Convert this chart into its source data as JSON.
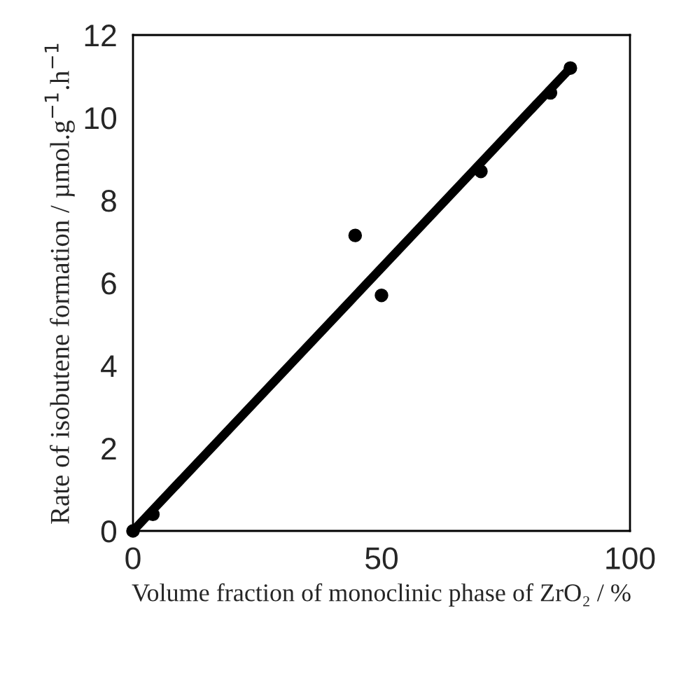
{
  "chart_data": {
    "type": "scatter",
    "xlabel": "Volume fraction of monoclinic phase of ZrO₂ / %",
    "ylabel": "Rate of isobutene formation / µmol.g$^{−1}$.h$^{−1}$",
    "xlim": [
      0,
      100
    ],
    "ylim": [
      0,
      12
    ],
    "xticks": [
      0,
      50,
      100
    ],
    "yticks": [
      0,
      2,
      4,
      6,
      8,
      10,
      12
    ],
    "grid": false,
    "legend": false,
    "series": [
      {
        "color": "#000000",
        "marker": "circle",
        "x": [
          0,
          4,
          44.7,
          50,
          70,
          84,
          88
        ],
        "values": [
          0,
          0.4,
          7.15,
          5.7,
          8.7,
          10.6,
          11.2
        ]
      },
      {
        "type": "line",
        "color": "#000000",
        "marker": "none",
        "line_style": "solid",
        "x": [
          0,
          88
        ],
        "values": [
          0,
          11.2
        ]
      }
    ]
  }
}
